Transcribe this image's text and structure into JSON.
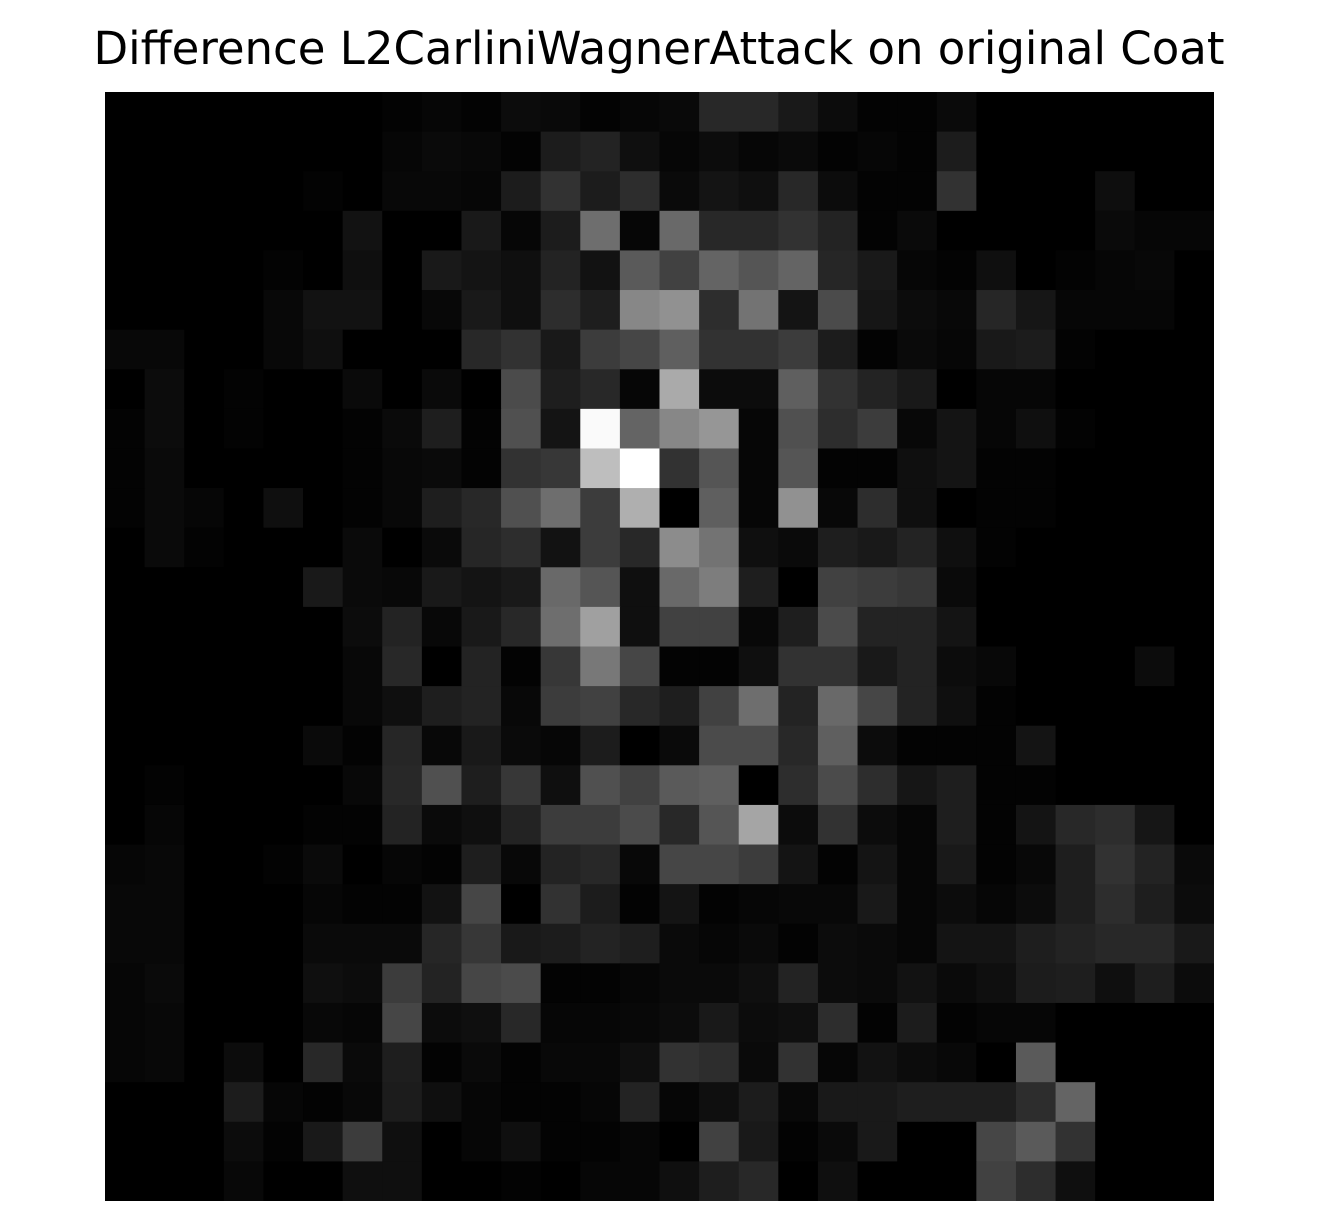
{
  "chart_data": {
    "type": "heatmap",
    "title": "Difference L2CarliniWagnerAttack on original Coat",
    "colormap": "gray",
    "axes_visible": false,
    "grid": false,
    "value_range": [
      0,
      255
    ],
    "rows": 28,
    "cols": 28,
    "values": [
      [
        0,
        0,
        0,
        0,
        0,
        0,
        0,
        3,
        6,
        3,
        12,
        9,
        3,
        6,
        9,
        40,
        40,
        25,
        12,
        3,
        3,
        10,
        0,
        0,
        0,
        0,
        0,
        0
      ],
      [
        0,
        0,
        0,
        0,
        0,
        0,
        0,
        6,
        10,
        8,
        3,
        28,
        35,
        15,
        6,
        12,
        6,
        10,
        3,
        6,
        3,
        28,
        0,
        0,
        0,
        0,
        0,
        0
      ],
      [
        0,
        0,
        0,
        0,
        0,
        3,
        0,
        8,
        8,
        6,
        28,
        50,
        28,
        45,
        10,
        20,
        15,
        40,
        12,
        3,
        3,
        50,
        0,
        0,
        0,
        14,
        0,
        0
      ],
      [
        0,
        0,
        0,
        0,
        0,
        0,
        18,
        0,
        0,
        25,
        6,
        28,
        110,
        6,
        105,
        40,
        40,
        50,
        35,
        3,
        10,
        0,
        0,
        0,
        0,
        10,
        6,
        6
      ],
      [
        0,
        0,
        0,
        0,
        3,
        0,
        15,
        0,
        25,
        20,
        15,
        35,
        18,
        90,
        65,
        100,
        85,
        100,
        38,
        25,
        6,
        3,
        15,
        0,
        3,
        6,
        8,
        0
      ],
      [
        0,
        0,
        0,
        0,
        8,
        18,
        18,
        0,
        8,
        25,
        15,
        45,
        30,
        135,
        145,
        45,
        115,
        20,
        75,
        22,
        12,
        8,
        38,
        22,
        6,
        6,
        6,
        0
      ],
      [
        8,
        8,
        0,
        0,
        8,
        15,
        0,
        0,
        0,
        40,
        50,
        25,
        60,
        70,
        95,
        50,
        50,
        60,
        28,
        3,
        10,
        6,
        25,
        28,
        3,
        0,
        0,
        0
      ],
      [
        0,
        12,
        0,
        3,
        0,
        0,
        10,
        0,
        10,
        0,
        75,
        30,
        40,
        6,
        170,
        12,
        12,
        95,
        50,
        35,
        25,
        0,
        6,
        6,
        0,
        0,
        0,
        0
      ],
      [
        3,
        12,
        0,
        3,
        0,
        0,
        3,
        10,
        30,
        3,
        80,
        20,
        250,
        100,
        135,
        150,
        6,
        80,
        45,
        60,
        8,
        20,
        6,
        15,
        3,
        0,
        0,
        0
      ],
      [
        3,
        10,
        0,
        0,
        0,
        0,
        3,
        8,
        10,
        3,
        50,
        55,
        190,
        255,
        50,
        85,
        6,
        85,
        3,
        3,
        15,
        20,
        3,
        3,
        0,
        0,
        0,
        0
      ],
      [
        3,
        10,
        6,
        0,
        15,
        0,
        3,
        8,
        30,
        40,
        80,
        110,
        60,
        175,
        0,
        95,
        6,
        145,
        8,
        45,
        15,
        0,
        3,
        3,
        0,
        0,
        0,
        0
      ],
      [
        0,
        10,
        3,
        0,
        0,
        0,
        10,
        0,
        10,
        38,
        45,
        18,
        60,
        40,
        140,
        115,
        15,
        10,
        30,
        25,
        35,
        15,
        3,
        0,
        0,
        0,
        0,
        0
      ],
      [
        0,
        0,
        0,
        0,
        0,
        25,
        10,
        8,
        25,
        20,
        25,
        105,
        85,
        15,
        105,
        125,
        30,
        0,
        65,
        60,
        55,
        10,
        0,
        0,
        0,
        0,
        0,
        0
      ],
      [
        0,
        0,
        0,
        0,
        0,
        0,
        12,
        35,
        8,
        25,
        40,
        110,
        160,
        15,
        65,
        65,
        8,
        30,
        75,
        35,
        35,
        20,
        0,
        0,
        0,
        0,
        0,
        0
      ],
      [
        0,
        0,
        0,
        0,
        0,
        0,
        8,
        40,
        0,
        35,
        3,
        55,
        120,
        70,
        3,
        3,
        15,
        50,
        50,
        25,
        35,
        12,
        8,
        0,
        0,
        0,
        12,
        0
      ],
      [
        0,
        0,
        0,
        0,
        0,
        0,
        8,
        15,
        30,
        35,
        8,
        60,
        65,
        40,
        30,
        65,
        110,
        35,
        105,
        70,
        35,
        15,
        3,
        0,
        0,
        0,
        0,
        0
      ],
      [
        0,
        0,
        0,
        0,
        0,
        10,
        3,
        38,
        8,
        25,
        10,
        6,
        28,
        0,
        10,
        75,
        75,
        40,
        95,
        12,
        3,
        3,
        3,
        20,
        0,
        0,
        0,
        0
      ],
      [
        0,
        3,
        0,
        0,
        0,
        0,
        8,
        40,
        80,
        30,
        55,
        15,
        80,
        65,
        90,
        95,
        0,
        45,
        75,
        45,
        22,
        30,
        3,
        3,
        0,
        0,
        0,
        0
      ],
      [
        0,
        6,
        0,
        0,
        0,
        3,
        3,
        35,
        10,
        15,
        35,
        60,
        60,
        75,
        40,
        85,
        165,
        12,
        50,
        12,
        6,
        30,
        3,
        20,
        40,
        45,
        22,
        0
      ],
      [
        6,
        8,
        0,
        0,
        3,
        10,
        0,
        6,
        3,
        30,
        8,
        35,
        40,
        8,
        70,
        70,
        60,
        20,
        3,
        20,
        6,
        25,
        3,
        8,
        30,
        50,
        35,
        10
      ],
      [
        8,
        8,
        0,
        0,
        0,
        6,
        3,
        3,
        18,
        70,
        0,
        50,
        28,
        3,
        20,
        3,
        6,
        8,
        8,
        25,
        6,
        12,
        6,
        12,
        30,
        45,
        30,
        12
      ],
      [
        8,
        8,
        0,
        0,
        0,
        10,
        10,
        10,
        38,
        55,
        25,
        28,
        35,
        30,
        10,
        6,
        10,
        3,
        12,
        10,
        6,
        20,
        20,
        30,
        35,
        40,
        40,
        25
      ],
      [
        6,
        10,
        0,
        0,
        0,
        15,
        12,
        60,
        35,
        70,
        75,
        3,
        3,
        6,
        10,
        10,
        15,
        35,
        12,
        10,
        18,
        10,
        15,
        28,
        30,
        15,
        30,
        12
      ],
      [
        6,
        8,
        0,
        0,
        0,
        8,
        6,
        70,
        12,
        15,
        40,
        6,
        6,
        8,
        12,
        25,
        12,
        15,
        45,
        3,
        28,
        3,
        6,
        6,
        0,
        0,
        0,
        0
      ],
      [
        6,
        8,
        0,
        12,
        0,
        40,
        10,
        30,
        3,
        10,
        3,
        8,
        8,
        15,
        50,
        45,
        10,
        50,
        6,
        18,
        12,
        8,
        0,
        90,
        0,
        0,
        0,
        0
      ],
      [
        0,
        0,
        0,
        28,
        6,
        3,
        8,
        28,
        15,
        6,
        3,
        3,
        6,
        35,
        6,
        15,
        28,
        8,
        25,
        25,
        30,
        30,
        30,
        45,
        100,
        0,
        0,
        0
      ],
      [
        0,
        0,
        0,
        12,
        3,
        25,
        60,
        15,
        0,
        6,
        15,
        3,
        3,
        6,
        0,
        65,
        25,
        3,
        10,
        25,
        0,
        0,
        70,
        90,
        50,
        0,
        0,
        0
      ],
      [
        0,
        0,
        0,
        8,
        0,
        0,
        15,
        15,
        0,
        0,
        3,
        0,
        6,
        6,
        15,
        30,
        40,
        0,
        15,
        0,
        0,
        0,
        65,
        45,
        15,
        0,
        0,
        0
      ]
    ]
  }
}
